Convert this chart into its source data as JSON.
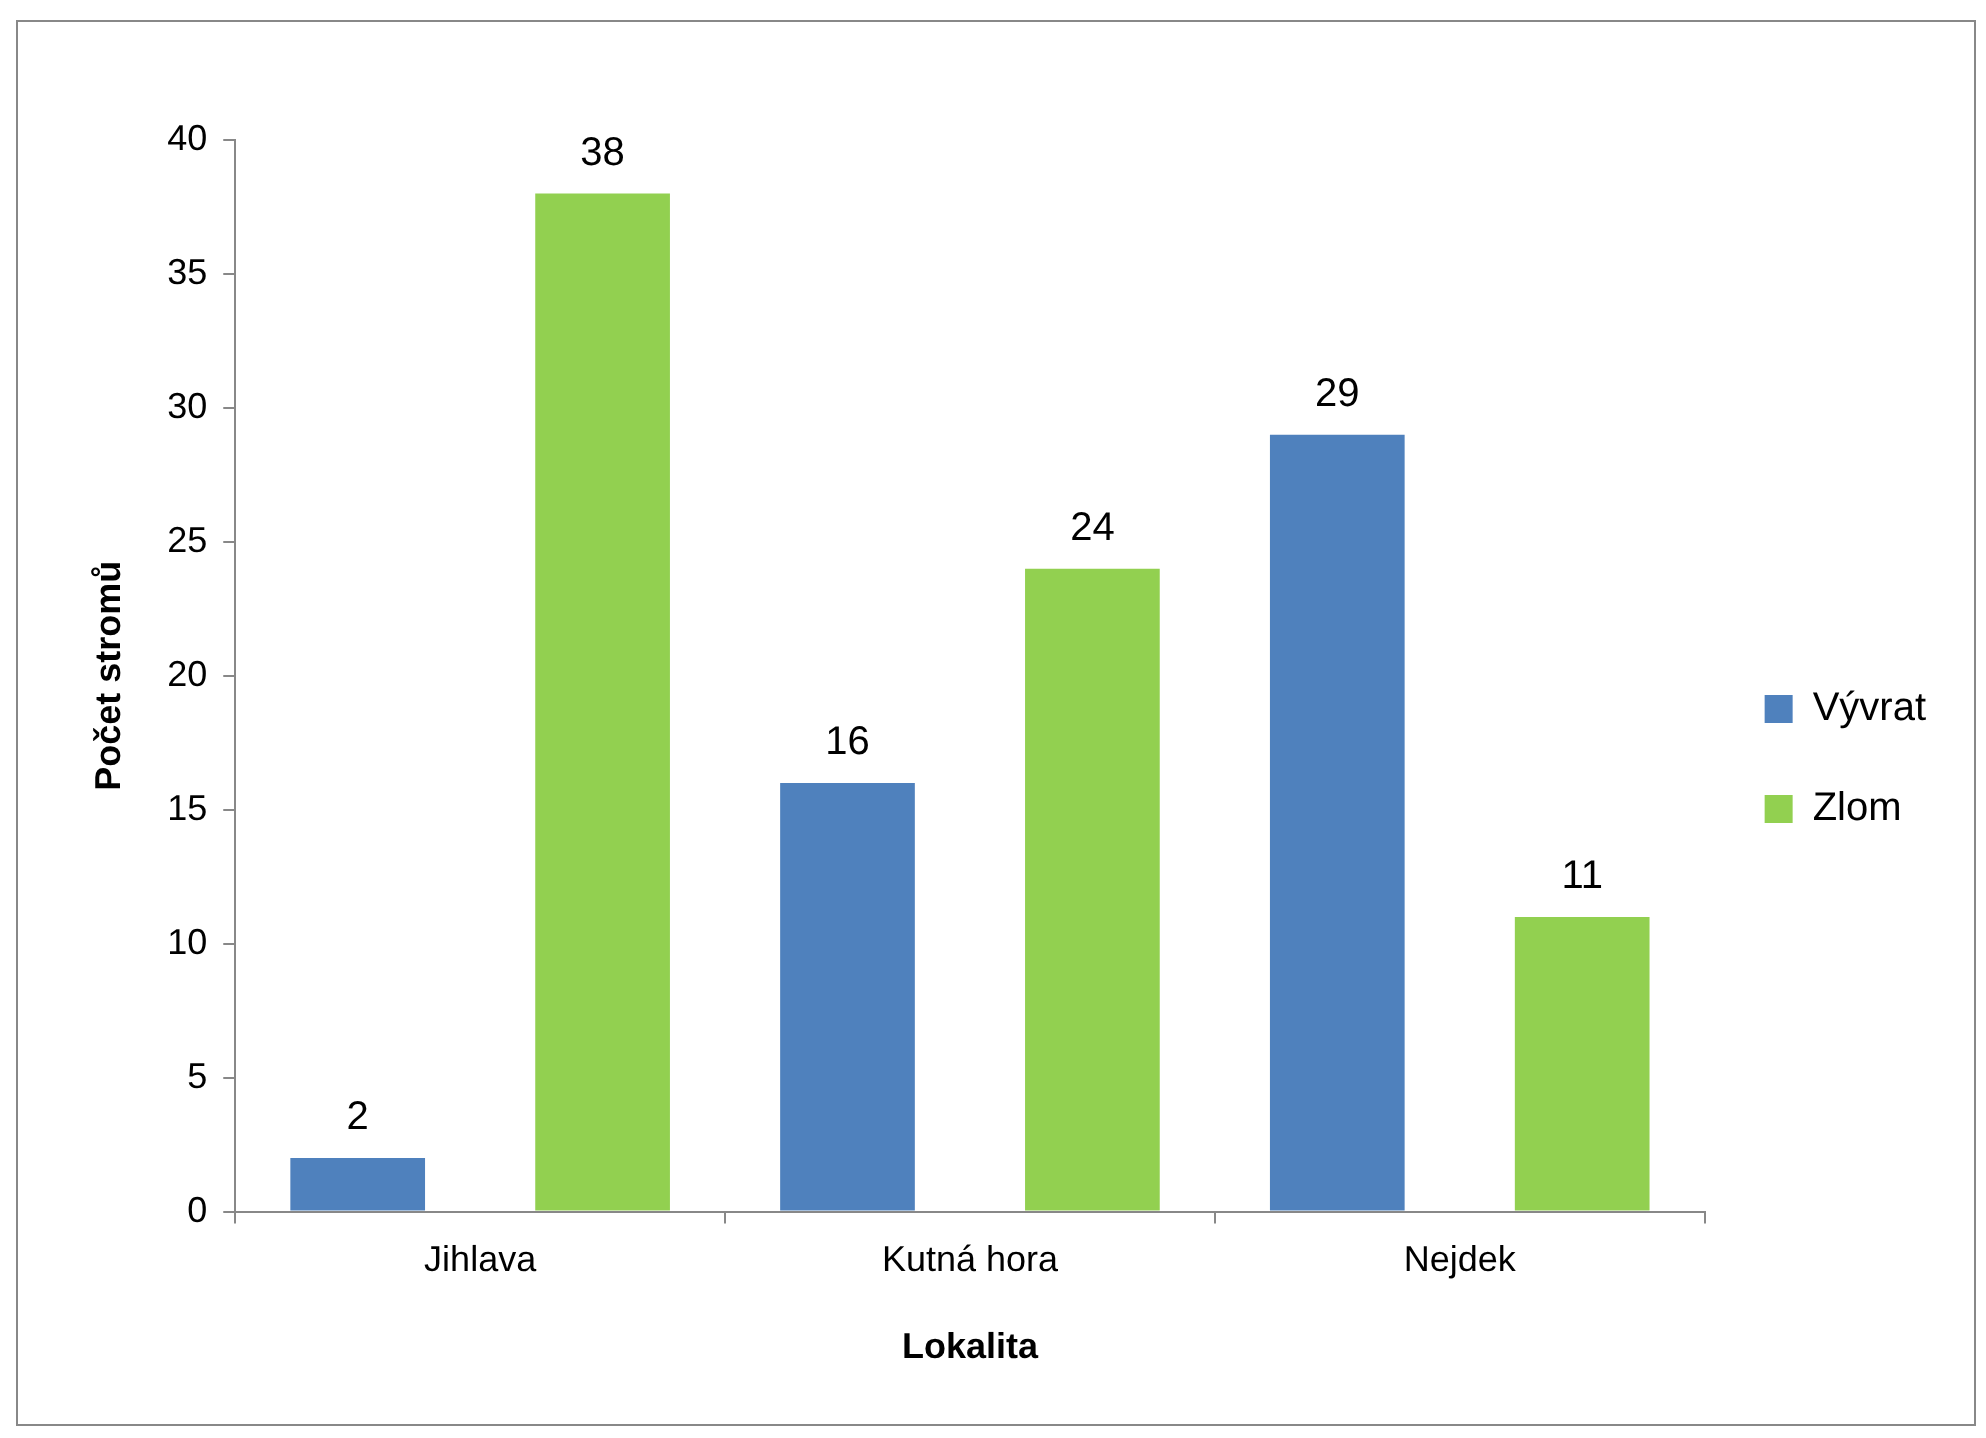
{
  "chart_data": {
    "type": "bar",
    "xlabel": "Lokalita",
    "ylabel": "Počet stromů",
    "categories": [
      "Jihlava",
      "Kutná hora",
      "Nejdek"
    ],
    "series": [
      {
        "name": "Vývrat",
        "color": "#4f81bd",
        "values": [
          2,
          16,
          29
        ]
      },
      {
        "name": "Zlom",
        "color": "#92d050",
        "values": [
          38,
          24,
          11
        ]
      }
    ],
    "ylim": [
      0,
      40
    ],
    "yticks": [
      0,
      5,
      10,
      15,
      20,
      25,
      30,
      35,
      40
    ],
    "grid": false,
    "legend": "right",
    "data_labels": true
  }
}
